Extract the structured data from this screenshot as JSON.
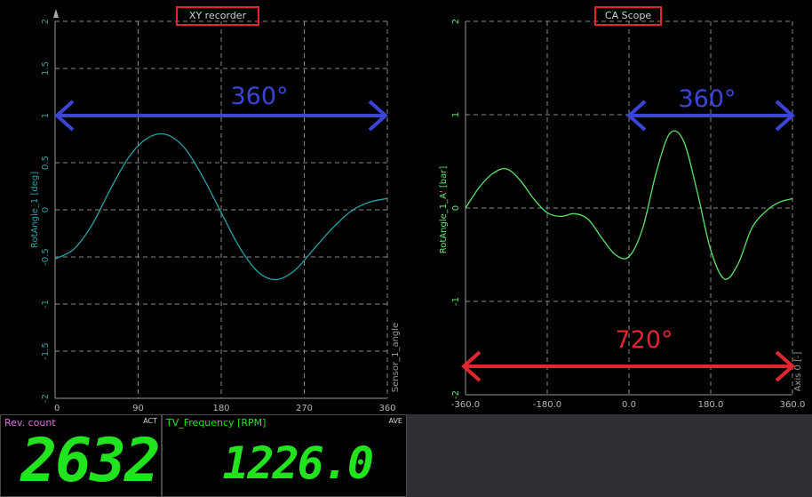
{
  "xy_recorder": {
    "title": "XY recorder",
    "y_axis_label": "RotAngle_1 [deg]",
    "x_axis_label": "Sensor_1_angle",
    "y_ticks": [
      "2",
      "1.5",
      "1",
      "0.5",
      "0",
      "-0.5",
      "-1",
      "-1.5",
      "-2"
    ],
    "x_ticks": [
      "0",
      "90",
      "180",
      "270",
      "360"
    ],
    "annotation": "360°",
    "colors": {
      "trace": "#21a3a8",
      "arrow": "#3b45d8",
      "grid": "#8a8a8a"
    }
  },
  "ca_scope": {
    "title": "CA Scope",
    "y_axis_label": "RotAngle_1_A' [bar]",
    "x_axis_label": "Axis 0 [-]",
    "y_ticks": [
      "2",
      "1",
      "0",
      "-1",
      "-2"
    ],
    "x_ticks": [
      "-360.0",
      "-180.0",
      "0.0",
      "180.0",
      "360.0"
    ],
    "annotation_top": "360°",
    "annotation_bottom": "720°",
    "colors": {
      "trace": "#58e66a",
      "arrow_top": "#3b45d8",
      "arrow_bottom": "#e0262e",
      "grid": "#8a8a8a"
    }
  },
  "chart_data": [
    {
      "type": "line",
      "title": "XY recorder",
      "xlabel": "Sensor_1_angle",
      "ylabel": "RotAngle_1 [deg]",
      "xlim": [
        0,
        360
      ],
      "ylim": [
        -2,
        2
      ],
      "grid": true,
      "x": [
        0,
        20,
        40,
        60,
        80,
        100,
        120,
        140,
        160,
        180,
        200,
        220,
        240,
        260,
        280,
        300,
        320,
        340,
        360
      ],
      "y": [
        -0.52,
        -0.42,
        -0.16,
        0.22,
        0.56,
        0.76,
        0.8,
        0.66,
        0.35,
        -0.03,
        -0.4,
        -0.66,
        -0.74,
        -0.64,
        -0.42,
        -0.2,
        -0.02,
        0.08,
        0.12
      ]
    },
    {
      "type": "line",
      "title": "CA Scope",
      "xlabel": "Axis 0 [-]",
      "ylabel": "RotAngle_1_A' [bar]",
      "xlim": [
        -360,
        360
      ],
      "ylim": [
        -2,
        2
      ],
      "grid": true,
      "x": [
        -360,
        -330,
        -300,
        -270,
        -240,
        -210,
        -180,
        -150,
        -120,
        -90,
        -60,
        -30,
        0,
        30,
        60,
        90,
        120,
        150,
        180,
        210,
        240,
        270,
        300,
        330,
        360
      ],
      "y": [
        0.0,
        0.22,
        0.37,
        0.42,
        0.3,
        0.1,
        -0.05,
        -0.09,
        -0.06,
        -0.12,
        -0.32,
        -0.5,
        -0.52,
        -0.22,
        0.38,
        0.8,
        0.72,
        0.18,
        -0.45,
        -0.76,
        -0.6,
        -0.22,
        -0.04,
        0.06,
        0.1
      ]
    }
  ],
  "meters": [
    {
      "label": "Rev. count",
      "mode": "ACT",
      "value": "2632",
      "label_color": "#e06ae0"
    },
    {
      "label": "TV_Frequency [RPM]",
      "mode": "AVE",
      "value": "1226.0",
      "label_color": "#22e41e"
    }
  ]
}
